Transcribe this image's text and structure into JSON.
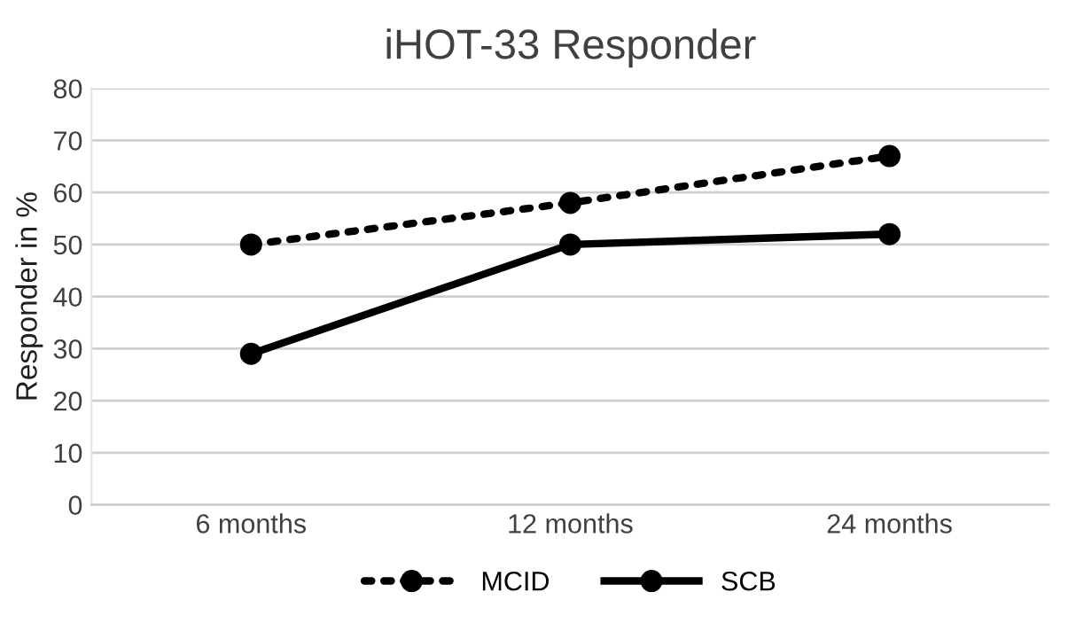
{
  "chart_data": {
    "type": "line",
    "title": "iHOT-33 Responder",
    "ylabel": "Responder in %",
    "categories": [
      "6 months",
      "12 months",
      "24 months"
    ],
    "series": [
      {
        "name": "MCID",
        "color": "#000000",
        "values": [
          50,
          58,
          67
        ],
        "line_style": "dotted"
      },
      {
        "name": "SCB",
        "color": "#000000",
        "values": [
          29,
          50,
          52
        ],
        "line_style": "solid"
      }
    ],
    "ylim": [
      0,
      80
    ],
    "yticks": [
      0,
      10,
      20,
      30,
      40,
      50,
      60,
      70,
      80
    ],
    "grid": "y",
    "legend": "bottom",
    "marker": "circle"
  }
}
